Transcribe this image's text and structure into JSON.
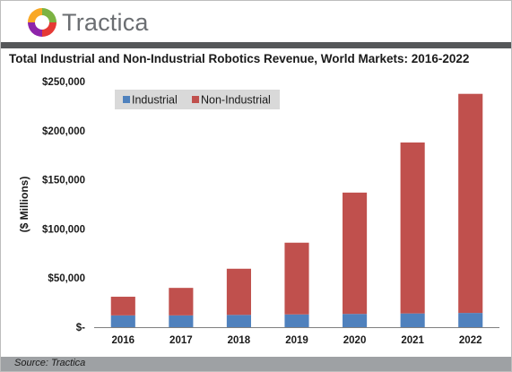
{
  "brand": {
    "name": "Tractica"
  },
  "colors": {
    "industrial": "#4f81bd",
    "non_industrial": "#c0504d",
    "header_bar": "#555759",
    "footer_bar": "#9ea1a4",
    "legend_bg": "#d9d9d9"
  },
  "footer": {
    "source": "Source: Tractica"
  },
  "chart_data": {
    "type": "bar",
    "stacked": true,
    "title": "Total Industrial and Non-Industrial Robotics Revenue, World Markets: 2016-2022",
    "xlabel": "",
    "ylabel": "($ Millions)",
    "ylim": [
      0,
      250000
    ],
    "yticks": [
      0,
      50000,
      100000,
      150000,
      200000,
      250000
    ],
    "ytick_labels": [
      "$-",
      "$50,000",
      "$100,000",
      "$150,000",
      "$200,000",
      "$250,000"
    ],
    "grid": false,
    "legend_position": "top-left",
    "categories": [
      "2016",
      "2017",
      "2018",
      "2019",
      "2020",
      "2021",
      "2022"
    ],
    "series": [
      {
        "name": "Industrial",
        "values": [
          12000,
          12000,
          12500,
          13000,
          13500,
          14000,
          14500
        ]
      },
      {
        "name": "Non-Industrial",
        "values": [
          19000,
          28000,
          47000,
          73000,
          123500,
          174000,
          223000
        ]
      }
    ]
  }
}
